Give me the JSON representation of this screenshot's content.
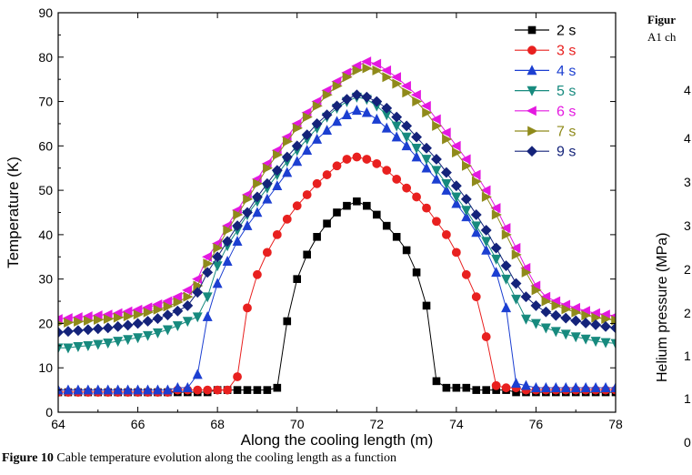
{
  "chart_data": {
    "type": "line",
    "xlabel": "Along the cooling length (m)",
    "ylabel": "Temperature (K)",
    "xlim": [
      64,
      78
    ],
    "ylim": [
      0,
      90
    ],
    "xticks": [
      64,
      66,
      68,
      70,
      72,
      74,
      76,
      78
    ],
    "yticks": [
      0,
      10,
      20,
      30,
      40,
      50,
      60,
      70,
      80,
      90
    ],
    "legend_position": "top-right",
    "series": [
      {
        "name": "2 s",
        "color": "#000000",
        "marker": "square",
        "x": [
          64,
          64.25,
          64.5,
          64.75,
          65,
          65.25,
          65.5,
          65.75,
          66,
          66.25,
          66.5,
          66.75,
          67,
          67.25,
          67.5,
          67.75,
          68,
          68.25,
          68.5,
          68.75,
          69,
          69.25,
          69.5,
          69.75,
          70,
          70.25,
          70.5,
          70.75,
          71,
          71.25,
          71.5,
          71.75,
          72,
          72.25,
          72.5,
          72.75,
          73,
          73.25,
          73.5,
          73.75,
          74,
          74.25,
          74.5,
          74.75,
          75,
          75.25,
          75.5,
          75.75,
          76,
          76.25,
          76.5,
          76.75,
          77,
          77.25,
          77.5,
          77.75,
          78
        ],
        "y": [
          4.5,
          4.5,
          4.5,
          4.5,
          4.5,
          4.5,
          4.5,
          4.5,
          4.5,
          4.5,
          4.5,
          4.5,
          4.5,
          4.5,
          4.5,
          4.5,
          5,
          5,
          5,
          5,
          5,
          5,
          5.5,
          20.5,
          30,
          35.5,
          39.5,
          42.5,
          45,
          46.5,
          47.5,
          46.5,
          44.5,
          42,
          39.5,
          36.5,
          31.5,
          24,
          7,
          5.5,
          5.5,
          5.5,
          5,
          5,
          5,
          5,
          4.5,
          4.5,
          4.5,
          4.5,
          4.5,
          4.5,
          4.5,
          4.5,
          4.5,
          4.5,
          4.5
        ]
      },
      {
        "name": "3 s",
        "color": "#e8201f",
        "marker": "circle",
        "x": [
          64,
          64.25,
          64.5,
          64.75,
          65,
          65.25,
          65.5,
          65.75,
          66,
          66.25,
          66.5,
          66.75,
          67,
          67.25,
          67.5,
          67.75,
          68,
          68.25,
          68.5,
          68.75,
          69,
          69.25,
          69.5,
          69.75,
          70,
          70.25,
          70.5,
          70.75,
          71,
          71.25,
          71.5,
          71.75,
          72,
          72.25,
          72.5,
          72.75,
          73,
          73.25,
          73.5,
          73.75,
          74,
          74.25,
          74.5,
          74.75,
          75,
          75.25,
          75.5,
          75.75,
          76,
          76.25,
          76.5,
          76.75,
          77,
          77.25,
          77.5,
          77.75,
          78
        ],
        "y": [
          4.5,
          4.5,
          4.5,
          4.5,
          4.5,
          4.5,
          4.5,
          4.5,
          4.5,
          4.5,
          4.5,
          4.5,
          5,
          5,
          5,
          5,
          5,
          5,
          8,
          23.5,
          31,
          36,
          40,
          43.5,
          46.5,
          49,
          51.5,
          53.5,
          55.5,
          57,
          57.5,
          57,
          56,
          54.5,
          52.5,
          50.5,
          48.5,
          46,
          43,
          40,
          36,
          31,
          26,
          17,
          6,
          5.5,
          5.5,
          5,
          5,
          5,
          5,
          5,
          5,
          5,
          5,
          5,
          5
        ]
      },
      {
        "name": "4 s",
        "color": "#1c3fd1",
        "marker": "triangle-up",
        "x": [
          64,
          64.25,
          64.5,
          64.75,
          65,
          65.25,
          65.5,
          65.75,
          66,
          66.25,
          66.5,
          66.75,
          67,
          67.25,
          67.5,
          67.75,
          68,
          68.25,
          68.5,
          68.75,
          69,
          69.25,
          69.5,
          69.75,
          70,
          70.25,
          70.5,
          70.75,
          71,
          71.25,
          71.5,
          71.75,
          72,
          72.25,
          72.5,
          72.75,
          73,
          73.25,
          73.5,
          73.75,
          74,
          74.25,
          74.5,
          74.75,
          75,
          75.25,
          75.5,
          75.75,
          76,
          76.25,
          76.5,
          76.75,
          77,
          77.25,
          77.5,
          77.75,
          78
        ],
        "y": [
          5,
          5,
          5,
          5,
          5,
          5,
          5,
          5,
          5,
          5,
          5,
          5,
          5.5,
          5.5,
          8.5,
          21.5,
          29,
          34,
          38.5,
          42,
          45,
          48,
          51,
          54,
          56.5,
          59,
          61.5,
          63.5,
          65.5,
          67,
          68,
          67.5,
          66,
          64,
          62,
          60,
          57.5,
          55,
          52.5,
          50,
          47,
          44,
          40.5,
          36.5,
          31.5,
          23.5,
          6.5,
          6,
          5.5,
          5.5,
          5.5,
          5.5,
          5.5,
          5.5,
          5.5,
          5.5,
          5.5
        ]
      },
      {
        "name": "5 s",
        "color": "#178a7e",
        "marker": "triangle-down",
        "x": [
          64,
          64.25,
          64.5,
          64.75,
          65,
          65.25,
          65.5,
          65.75,
          66,
          66.25,
          66.5,
          66.75,
          67,
          67.25,
          67.5,
          67.75,
          68,
          68.25,
          68.5,
          68.75,
          69,
          69.25,
          69.5,
          69.75,
          70,
          70.25,
          70.5,
          70.75,
          71,
          71.25,
          71.5,
          71.75,
          72,
          72.25,
          72.5,
          72.75,
          73,
          73.25,
          73.5,
          73.75,
          74,
          74.25,
          74.5,
          74.75,
          75,
          75.25,
          75.5,
          75.75,
          76,
          76.25,
          76.5,
          76.75,
          77,
          77.25,
          77.5,
          77.75,
          78
        ],
        "y": [
          14.5,
          14.5,
          14.8,
          15,
          15.3,
          15.6,
          16,
          16.4,
          16.8,
          17.3,
          17.9,
          18.6,
          19.5,
          20.5,
          21.5,
          26,
          33,
          37.5,
          41,
          44.5,
          47.5,
          50.5,
          53.5,
          56.5,
          59,
          61.5,
          64,
          66.5,
          68.5,
          70,
          71,
          70.5,
          69,
          67,
          64.5,
          62,
          59.5,
          57,
          54.5,
          51.5,
          48.5,
          45.5,
          42,
          38.5,
          34.5,
          30,
          25.5,
          21,
          20,
          19,
          18.2,
          17.6,
          17,
          16.5,
          16,
          15.7,
          15.5
        ]
      },
      {
        "name": "6 s",
        "color": "#e418e0",
        "marker": "triangle-left",
        "x": [
          64,
          64.25,
          64.5,
          64.75,
          65,
          65.25,
          65.5,
          65.75,
          66,
          66.25,
          66.5,
          66.75,
          67,
          67.25,
          67.5,
          67.75,
          68,
          68.25,
          68.5,
          68.75,
          69,
          69.25,
          69.5,
          69.75,
          70,
          70.25,
          70.5,
          70.75,
          71,
          71.25,
          71.5,
          71.75,
          72,
          72.25,
          72.5,
          72.75,
          73,
          73.25,
          73.5,
          73.75,
          74,
          74.25,
          74.5,
          74.75,
          75,
          75.25,
          75.5,
          75.75,
          76,
          76.25,
          76.5,
          76.75,
          77,
          77.25,
          77.5,
          77.75,
          78
        ],
        "y": [
          21,
          21.2,
          21.4,
          21.6,
          21.8,
          22,
          22.3,
          22.7,
          23.1,
          23.6,
          24.3,
          25,
          26,
          27.5,
          30,
          35,
          38,
          42,
          45.5,
          49,
          52.5,
          56,
          59,
          62,
          65,
          67.5,
          70,
          72.5,
          74.5,
          76.5,
          78,
          79,
          78.5,
          77,
          75.5,
          73.5,
          71.5,
          69,
          66,
          63,
          60,
          57,
          53.5,
          50,
          46,
          41.5,
          37,
          32.5,
          28.5,
          26,
          25,
          24.2,
          23.5,
          22.8,
          22.3,
          22,
          21.7
        ]
      },
      {
        "name": "7 s",
        "color": "#8f8a1a",
        "marker": "triangle-right",
        "x": [
          64,
          64.25,
          64.5,
          64.75,
          65,
          65.25,
          65.5,
          65.75,
          66,
          66.25,
          66.5,
          66.75,
          67,
          67.25,
          67.5,
          67.75,
          68,
          68.25,
          68.5,
          68.75,
          69,
          69.25,
          69.5,
          69.75,
          70,
          70.25,
          70.5,
          70.75,
          71,
          71.25,
          71.5,
          71.75,
          72,
          72.25,
          72.5,
          72.75,
          73,
          73.25,
          73.5,
          73.75,
          74,
          74.25,
          74.5,
          74.75,
          75,
          75.25,
          75.5,
          75.75,
          76,
          76.25,
          76.5,
          76.75,
          77,
          77.25,
          77.5,
          77.75,
          78
        ],
        "y": [
          20,
          20.2,
          20.4,
          20.6,
          20.8,
          21,
          21.3,
          21.6,
          22,
          22.5,
          23.1,
          23.8,
          24.8,
          26,
          28.5,
          33.5,
          37,
          41,
          44.5,
          48,
          51.5,
          55,
          58,
          61,
          64,
          66.5,
          69,
          71.5,
          73.5,
          75.5,
          77,
          77.5,
          77,
          75.5,
          74,
          72,
          70,
          67.5,
          64.5,
          61.5,
          58.5,
          55.5,
          52,
          48.5,
          44.5,
          40,
          35.5,
          31.5,
          27.5,
          25,
          24,
          23.2,
          22.5,
          21.8,
          21.3,
          21,
          20.7
        ]
      },
      {
        "name": "9 s",
        "color": "#14237a",
        "marker": "diamond",
        "x": [
          64,
          64.25,
          64.5,
          64.75,
          65,
          65.25,
          65.5,
          65.75,
          66,
          66.25,
          66.5,
          66.75,
          67,
          67.25,
          67.5,
          67.75,
          68,
          68.25,
          68.5,
          68.75,
          69,
          69.25,
          69.5,
          69.75,
          70,
          70.25,
          70.5,
          70.75,
          71,
          71.25,
          71.5,
          71.75,
          72,
          72.25,
          72.5,
          72.75,
          73,
          73.25,
          73.5,
          73.75,
          74,
          74.25,
          74.5,
          74.75,
          75,
          75.25,
          75.5,
          75.75,
          76,
          76.25,
          76.5,
          76.75,
          77,
          77.25,
          77.5,
          77.75,
          78
        ],
        "y": [
          18,
          18.2,
          18.4,
          18.6,
          18.8,
          19,
          19.3,
          19.6,
          20,
          20.5,
          21.1,
          21.9,
          22.8,
          24,
          27,
          31.5,
          35,
          38.5,
          42,
          45,
          48.5,
          51.5,
          54.5,
          57.5,
          60,
          62.5,
          65,
          67,
          69,
          70.5,
          71.5,
          71,
          70,
          68.5,
          66.5,
          64.5,
          62,
          59.5,
          57,
          54,
          51,
          48,
          44.5,
          41,
          37,
          33,
          29,
          26,
          24,
          22.6,
          21.8,
          21.2,
          20.6,
          20.1,
          19.7,
          19.3,
          19
        ]
      }
    ]
  },
  "caption": {
    "label": "Figure 10",
    "text": " Cable temperature evolution along the cooling length as a function"
  },
  "right_panel": {
    "heading": "Figur",
    "subheading": "A1 ch",
    "ylabel": "Helium pressure (MPa)",
    "tick_labels": [
      "4",
      "4",
      "3",
      "3",
      "2",
      "2",
      "1",
      "1",
      "0"
    ]
  }
}
